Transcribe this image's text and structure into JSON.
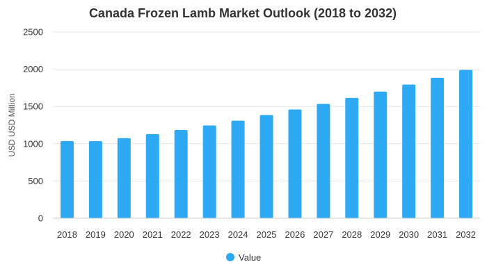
{
  "chart_data": {
    "type": "bar",
    "title": "Canada Frozen Lamb Market Outlook (2018 to 2032)",
    "xlabel": "",
    "ylabel": "USD USD Million",
    "categories": [
      "2018",
      "2019",
      "2020",
      "2021",
      "2022",
      "2023",
      "2024",
      "2025",
      "2026",
      "2027",
      "2028",
      "2029",
      "2030",
      "2031",
      "2032"
    ],
    "series": [
      {
        "name": "Value",
        "color": "#2eaaf5",
        "values": [
          1035,
          1035,
          1075,
          1130,
          1185,
          1245,
          1310,
          1385,
          1460,
          1535,
          1615,
          1700,
          1795,
          1885,
          1990
        ]
      }
    ],
    "ylim": [
      0,
      2500
    ],
    "yticks": [
      0,
      500,
      1000,
      1500,
      2000,
      2500
    ],
    "grid": true,
    "legend_position": "bottom-center"
  }
}
